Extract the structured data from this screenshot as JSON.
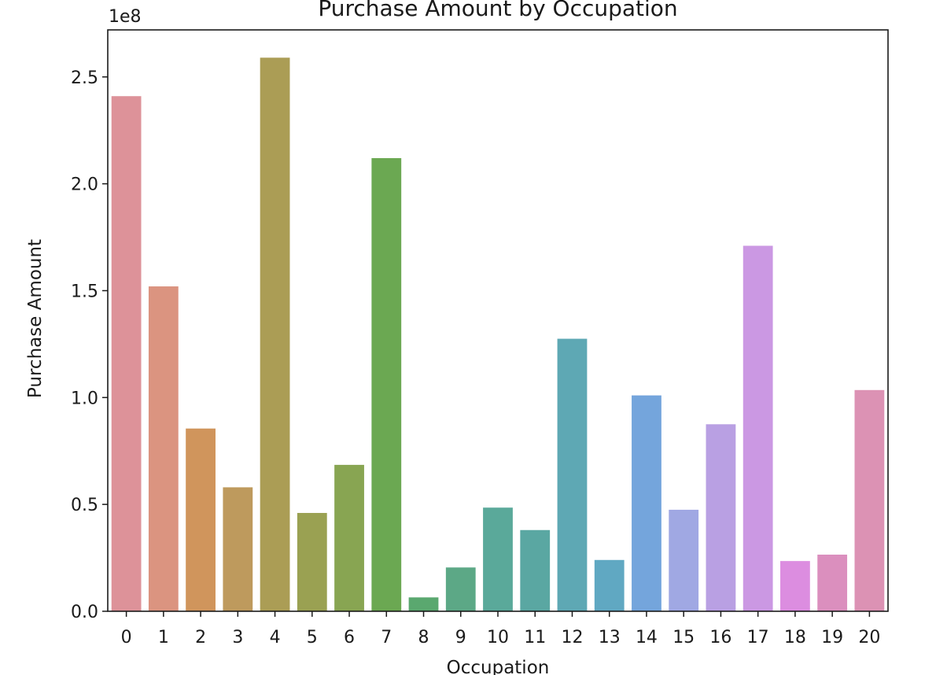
{
  "chart_data": {
    "type": "bar",
    "title": "Purchase Amount by Occupation",
    "xlabel": "Occupation",
    "ylabel": "Purchase Amount",
    "y_offset_text": "1e8",
    "categories": [
      "0",
      "1",
      "2",
      "3",
      "4",
      "5",
      "6",
      "7",
      "8",
      "9",
      "10",
      "11",
      "12",
      "13",
      "14",
      "15",
      "16",
      "17",
      "18",
      "19",
      "20"
    ],
    "values": [
      241000000.0,
      152000000.0,
      85500000.0,
      58000000.0,
      259000000.0,
      46000000.0,
      68500000.0,
      212000000.0,
      6500000.0,
      20500000.0,
      48500000.0,
      38000000.0,
      127500000.0,
      24000000.0,
      101000000.0,
      47500000.0,
      87500000.0,
      171000000.0,
      23500000.0,
      26500000.0,
      103500000.0
    ],
    "colors": [
      "#dd9299",
      "#db9480",
      "#d0955c",
      "#be9a5d",
      "#ab9d55",
      "#9aa152",
      "#88a552",
      "#6ba852",
      "#5aa86f",
      "#5ca886",
      "#5aa99a",
      "#5aa7a2",
      "#5ea8b4",
      "#60a8c2",
      "#74a5dc",
      "#a0a8e3",
      "#b9a0e3",
      "#cb98e3",
      "#dc8de0",
      "#db8fbe",
      "#dc92b4"
    ],
    "yticks": [
      "0.0",
      "0.5",
      "1.0",
      "1.5",
      "2.0",
      "2.5"
    ],
    "ylim": [
      0,
      272000000.0
    ],
    "grid": false,
    "legend": "none"
  }
}
